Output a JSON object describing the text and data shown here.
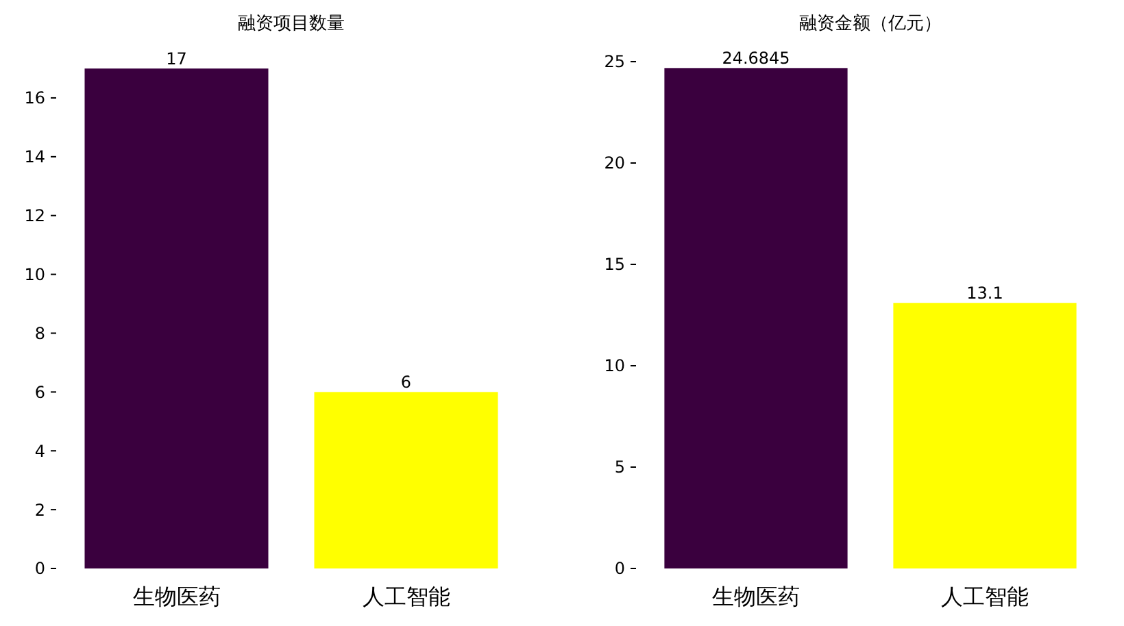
{
  "chart_data": [
    {
      "type": "bar",
      "title": "融资项目数量",
      "categories": [
        "生物医药",
        "人工智能"
      ],
      "values": [
        17,
        6
      ],
      "colors": [
        "#3a003e",
        "#ffff00"
      ],
      "ylim": [
        0,
        17
      ],
      "yticks": [
        0,
        2,
        4,
        6,
        8,
        10,
        12,
        14,
        16
      ],
      "data_labels": true
    },
    {
      "type": "bar",
      "title": "融资金额（亿元）",
      "categories": [
        "生物医药",
        "人工智能"
      ],
      "values": [
        24.6845,
        13.1
      ],
      "colors": [
        "#3a003e",
        "#ffff00"
      ],
      "ylim": [
        0,
        25
      ],
      "yticks": [
        0,
        5,
        10,
        15,
        20,
        25
      ],
      "data_labels": true
    }
  ]
}
